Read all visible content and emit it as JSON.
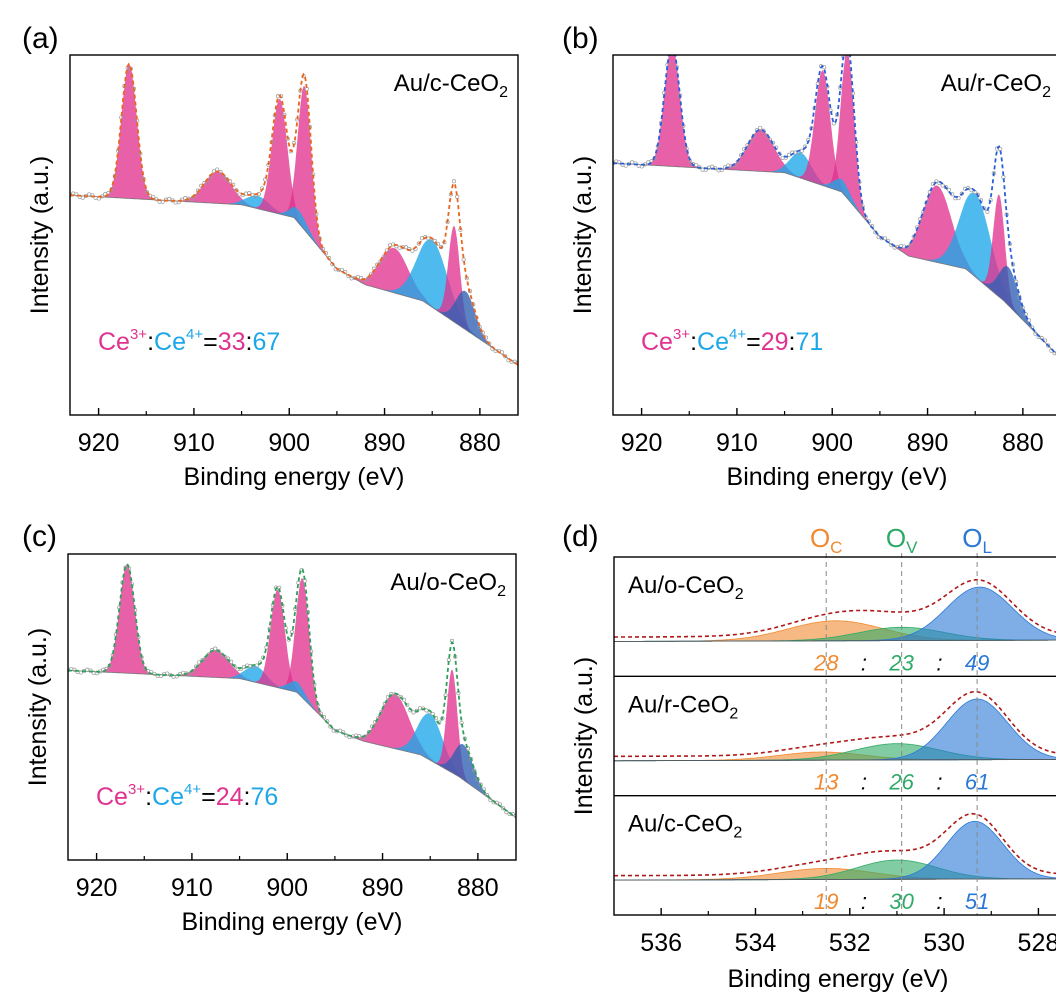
{
  "colors": {
    "ce3": "#e0338f",
    "ce4": "#1ea7e8",
    "ce4_dark": "#2f5fb3",
    "o_c": "#f08a30",
    "o_v": "#2eaa66",
    "o_l": "#2a78d6",
    "envelope_a": "#e8661e",
    "envelope_b": "#2a5fd6",
    "envelope_c": "#2fa05a",
    "envelope_d": "#b01818",
    "data_points": "#9a9a9a"
  },
  "chart_data": [
    {
      "panel": "(a)",
      "type": "line",
      "sample": "Au/c-CeO",
      "sample_sub": "2",
      "xlabel": "Binding energy (eV)",
      "ylabel": "Intensity (a.u.)",
      "xlim": [
        923,
        876
      ],
      "x_ticks": [
        "920",
        "910",
        "900",
        "890",
        "880"
      ],
      "x_tick_values": [
        920,
        910,
        900,
        890,
        880
      ],
      "ratio": {
        "ce3_label": "Ce",
        "ce3_sup": "3+",
        "sep": ":",
        "ce4_label": "Ce",
        "ce4_sup": "4+",
        "eq": "=",
        "ce3_value": "33",
        "ce4_value": "67"
      },
      "baseline": [
        [
          923,
          0.63
        ],
        [
          905,
          0.6
        ],
        [
          899.5,
          0.56
        ],
        [
          895,
          0.4
        ],
        [
          892,
          0.35
        ],
        [
          886,
          0.3
        ],
        [
          882,
          0.22
        ],
        [
          876,
          0.1
        ]
      ],
      "peaks": [
        {
          "species": "Ce3+",
          "center": 916.8,
          "width": 0.8,
          "height": 0.42
        },
        {
          "species": "Ce3+",
          "center": 907.5,
          "width": 1.4,
          "height": 0.1
        },
        {
          "species": "Ce4+",
          "center": 903.3,
          "width": 1.2,
          "height": 0.04
        },
        {
          "species": "Ce3+",
          "center": 901.0,
          "width": 0.8,
          "height": 0.36
        },
        {
          "species": "Ce3+",
          "center": 898.4,
          "width": 0.7,
          "height": 0.45
        },
        {
          "species": "Ce4+",
          "center": 899.0,
          "width": 0.9,
          "height": 0.04
        },
        {
          "species": "Ce3+",
          "center": 889.0,
          "width": 1.5,
          "height": 0.14
        },
        {
          "species": "Ce4+",
          "center": 885.0,
          "width": 1.6,
          "height": 0.21
        },
        {
          "species": "Ce3+",
          "center": 882.7,
          "width": 0.6,
          "height": 0.3
        },
        {
          "species": "Ce4+",
          "center": 881.5,
          "width": 1.0,
          "height": 0.12
        }
      ]
    },
    {
      "panel": "(b)",
      "type": "line",
      "sample": "Au/r-CeO",
      "sample_sub": "2",
      "xlabel": "Binding energy (eV)",
      "ylabel": "Intensity (a.u.)",
      "xlim": [
        923,
        876
      ],
      "x_ticks": [
        "920",
        "910",
        "900",
        "890",
        "880"
      ],
      "x_tick_values": [
        920,
        910,
        900,
        890,
        880
      ],
      "ratio": {
        "ce3_label": "Ce",
        "ce3_sup": "3+",
        "sep": ":",
        "ce4_label": "Ce",
        "ce4_sup": "4+",
        "eq": "=",
        "ce3_value": "29",
        "ce4_value": "71"
      },
      "baseline": [
        [
          923,
          0.73
        ],
        [
          905,
          0.7
        ],
        [
          899,
          0.64
        ],
        [
          895,
          0.5
        ],
        [
          892,
          0.44
        ],
        [
          886,
          0.4
        ],
        [
          882,
          0.3
        ],
        [
          876,
          0.12
        ]
      ],
      "peaks": [
        {
          "species": "Ce3+",
          "center": 916.8,
          "width": 0.8,
          "height": 0.38
        },
        {
          "species": "Ce3+",
          "center": 907.5,
          "width": 1.4,
          "height": 0.13
        },
        {
          "species": "Ce4+",
          "center": 903.3,
          "width": 1.1,
          "height": 0.08
        },
        {
          "species": "Ce3+",
          "center": 901.0,
          "width": 0.8,
          "height": 0.36
        },
        {
          "species": "Ce3+",
          "center": 898.4,
          "width": 0.7,
          "height": 0.46
        },
        {
          "species": "Ce4+",
          "center": 899.0,
          "width": 0.9,
          "height": 0.04
        },
        {
          "species": "Ce3+",
          "center": 889.0,
          "width": 1.5,
          "height": 0.24
        },
        {
          "species": "Ce4+",
          "center": 885.0,
          "width": 1.6,
          "height": 0.26
        },
        {
          "species": "Ce3+",
          "center": 882.5,
          "width": 0.6,
          "height": 0.32
        },
        {
          "species": "Ce4+",
          "center": 881.5,
          "width": 1.0,
          "height": 0.12
        }
      ]
    },
    {
      "panel": "(c)",
      "type": "line",
      "sample": "Au/o-CeO",
      "sample_sub": "2",
      "xlabel": "Binding energy (eV)",
      "ylabel": "Intensity (a.u.)",
      "xlim": [
        923,
        876
      ],
      "x_ticks": [
        "920",
        "910",
        "900",
        "890",
        "880"
      ],
      "x_tick_values": [
        920,
        910,
        900,
        890,
        880
      ],
      "ratio": {
        "ce3_label": "Ce",
        "ce3_sup": "3+",
        "sep": ":",
        "ce4_label": "Ce",
        "ce4_sup": "4+",
        "eq": "=",
        "ce3_value": "24",
        "ce4_value": "76"
      },
      "baseline": [
        [
          923,
          0.64
        ],
        [
          905,
          0.61
        ],
        [
          899,
          0.56
        ],
        [
          895,
          0.42
        ],
        [
          892,
          0.38
        ],
        [
          886,
          0.33
        ],
        [
          882,
          0.25
        ],
        [
          876,
          0.1
        ]
      ],
      "peaks": [
        {
          "species": "Ce3+",
          "center": 916.8,
          "width": 0.8,
          "height": 0.4
        },
        {
          "species": "Ce3+",
          "center": 907.5,
          "width": 1.4,
          "height": 0.1
        },
        {
          "species": "Ce4+",
          "center": 903.3,
          "width": 1.1,
          "height": 0.06
        },
        {
          "species": "Ce3+",
          "center": 901.0,
          "width": 0.75,
          "height": 0.36
        },
        {
          "species": "Ce3+",
          "center": 898.4,
          "width": 0.7,
          "height": 0.44
        },
        {
          "species": "Ce4+",
          "center": 899.0,
          "width": 0.9,
          "height": 0.04
        },
        {
          "species": "Ce3+",
          "center": 888.7,
          "width": 1.5,
          "height": 0.2
        },
        {
          "species": "Ce4+",
          "center": 885.0,
          "width": 1.3,
          "height": 0.17
        },
        {
          "species": "Ce3+",
          "center": 882.7,
          "width": 0.55,
          "height": 0.38
        },
        {
          "species": "Ce4+",
          "center": 881.5,
          "width": 1.0,
          "height": 0.13
        }
      ]
    },
    {
      "panel": "(d)",
      "type": "area",
      "xlabel": "Binding energy (eV)",
      "ylabel": "Intensity (a.u.)",
      "xlim": [
        537,
        527.5
      ],
      "x_ticks": [
        "536",
        "534",
        "532",
        "530",
        "528"
      ],
      "x_tick_values": [
        536,
        534,
        532,
        530,
        528
      ],
      "components": [
        {
          "label": "O",
          "sub": "C",
          "center": 532.5
        },
        {
          "label": "O",
          "sub": "V",
          "center": 530.9
        },
        {
          "label": "O",
          "sub": "L",
          "center": 529.3
        }
      ],
      "subpanels": [
        {
          "sample": "Au/o-CeO",
          "sample_sub": "2",
          "values": [
            "28",
            "23",
            "49"
          ],
          "sep": ":",
          "peaks": [
            {
              "species": "O_C",
              "center": 532.3,
              "width": 1.0,
              "height": 0.27
            },
            {
              "species": "O_V",
              "center": 530.9,
              "width": 0.9,
              "height": 0.18
            },
            {
              "species": "O_L",
              "center": 529.25,
              "width": 0.7,
              "height": 0.72
            }
          ]
        },
        {
          "sample": "Au/r-CeO",
          "sample_sub": "2",
          "values": [
            "13",
            "26",
            "61"
          ],
          "sep": ":",
          "peaks": [
            {
              "species": "O_C",
              "center": 532.6,
              "width": 0.9,
              "height": 0.11
            },
            {
              "species": "O_V",
              "center": 531.0,
              "width": 0.9,
              "height": 0.22
            },
            {
              "species": "O_L",
              "center": 529.3,
              "width": 0.65,
              "height": 0.82
            }
          ]
        },
        {
          "sample": "Au/c-CeO",
          "sample_sub": "2",
          "values": [
            "19",
            "30",
            "51"
          ],
          "sep": ":",
          "peaks": [
            {
              "species": "O_C",
              "center": 532.5,
              "width": 1.0,
              "height": 0.15
            },
            {
              "species": "O_V",
              "center": 531.0,
              "width": 0.85,
              "height": 0.26
            },
            {
              "species": "O_L",
              "center": 529.35,
              "width": 0.6,
              "height": 0.78
            }
          ]
        }
      ]
    }
  ]
}
